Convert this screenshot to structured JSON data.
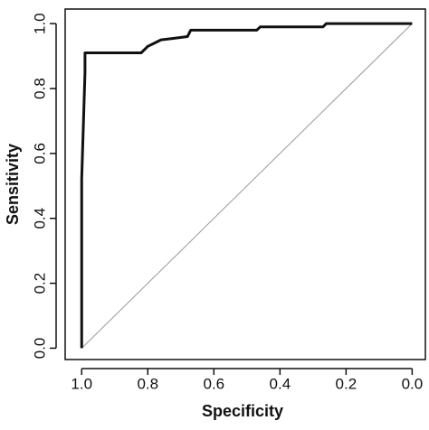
{
  "chart_data": {
    "type": "line",
    "x_label": "Specificity",
    "y_label": "Sensitivity",
    "xlim": [
      1.05,
      -0.04
    ],
    "ylim": [
      -0.035,
      1.045
    ],
    "xticks": [
      {
        "value": 1.0,
        "label": "1.0"
      },
      {
        "value": 0.8,
        "label": "0.8"
      },
      {
        "value": 0.6,
        "label": "0.6"
      },
      {
        "value": 0.4,
        "label": "0.4"
      },
      {
        "value": 0.2,
        "label": "0.2"
      },
      {
        "value": 0.0,
        "label": "0.0"
      }
    ],
    "yticks": [
      {
        "value": 0.0,
        "label": "0.0"
      },
      {
        "value": 0.2,
        "label": "0.2"
      },
      {
        "value": 0.4,
        "label": "0.4"
      },
      {
        "value": 0.6,
        "label": "0.6"
      },
      {
        "value": 0.8,
        "label": "0.8"
      },
      {
        "value": 1.0,
        "label": "1.0"
      }
    ],
    "series": [
      {
        "color": "#111111",
        "width": 3,
        "x": [
          1.0,
          1.0,
          0.99,
          0.99,
          0.82,
          0.8,
          0.78,
          0.76,
          0.72,
          0.68,
          0.67,
          0.47,
          0.46,
          0.27,
          0.26,
          0.0
        ],
        "values": [
          0.0,
          0.52,
          0.85,
          0.91,
          0.91,
          0.93,
          0.94,
          0.95,
          0.955,
          0.96,
          0.98,
          0.98,
          0.99,
          0.99,
          1.0,
          1.0
        ]
      },
      {
        "color": "#999999",
        "width": 1,
        "x": [
          1.0,
          0.0
        ],
        "values": [
          0.0,
          1.0
        ]
      }
    ]
  }
}
